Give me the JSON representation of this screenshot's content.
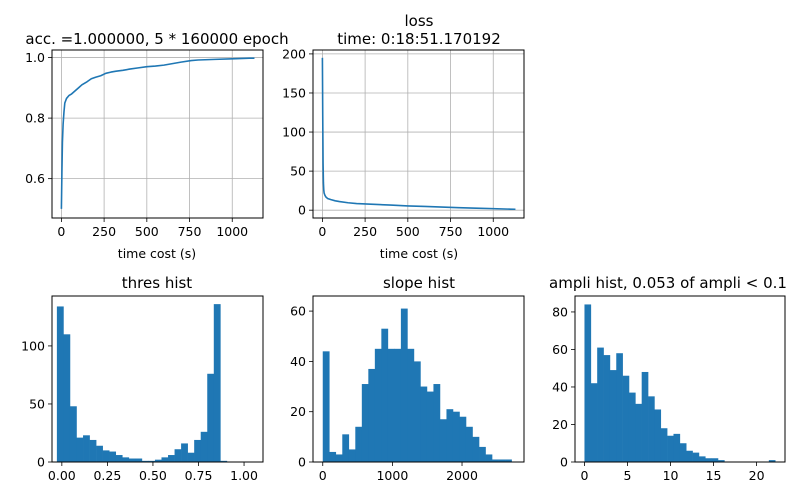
{
  "figure": {
    "accent": "#1f77b4"
  },
  "chart_data": [
    {
      "id": "acc",
      "type": "line",
      "title": "acc. =1.000000, 5 * 160000 epoch",
      "xlabel": "time cost (s)",
      "ylabel": "",
      "xlim": [
        -55,
        1180
      ],
      "ylim": [
        0.47,
        1.025
      ],
      "xticks": [
        0,
        250,
        500,
        750,
        1000
      ],
      "xtick_labels": [
        "0",
        "250",
        "500",
        "750",
        "1000"
      ],
      "yticks": [
        0.6,
        0.8,
        1.0
      ],
      "ytick_labels": [
        "0.6",
        "0.8",
        "1.0"
      ],
      "grid": true,
      "x": [
        0,
        3,
        6,
        10,
        15,
        20,
        30,
        45,
        60,
        80,
        100,
        120,
        150,
        175,
        200,
        230,
        260,
        290,
        320,
        360,
        400,
        450,
        500,
        550,
        600,
        650,
        700,
        760,
        800,
        900,
        1000,
        1100,
        1130
      ],
      "y": [
        0.5,
        0.62,
        0.72,
        0.78,
        0.82,
        0.85,
        0.865,
        0.875,
        0.88,
        0.89,
        0.9,
        0.91,
        0.92,
        0.93,
        0.935,
        0.94,
        0.948,
        0.952,
        0.955,
        0.958,
        0.962,
        0.966,
        0.97,
        0.972,
        0.975,
        0.98,
        0.985,
        0.99,
        0.992,
        0.994,
        0.996,
        0.998,
        0.998
      ]
    },
    {
      "id": "loss",
      "type": "line",
      "title": "loss",
      "subtitle": "time: 0:18:51.170192",
      "xlabel": "time cost (s)",
      "ylabel": "",
      "xlim": [
        -55,
        1180
      ],
      "ylim": [
        -10,
        205
      ],
      "xticks": [
        0,
        250,
        500,
        750,
        1000
      ],
      "xtick_labels": [
        "0",
        "250",
        "500",
        "750",
        "1000"
      ],
      "yticks": [
        0,
        50,
        100,
        150,
        200
      ],
      "ytick_labels": [
        "0",
        "50",
        "100",
        "150",
        "200"
      ],
      "grid": true,
      "x": [
        0,
        2,
        4,
        6,
        8,
        10,
        15,
        20,
        30,
        50,
        75,
        100,
        150,
        200,
        300,
        400,
        500,
        600,
        700,
        800,
        900,
        1000,
        1100,
        1130
      ],
      "y": [
        195,
        120,
        60,
        35,
        26,
        22,
        19,
        17,
        15,
        13.5,
        12,
        11,
        9.5,
        8.5,
        7.5,
        6.5,
        5.5,
        4.8,
        4,
        3.2,
        2.6,
        2,
        1.3,
        1.2
      ]
    },
    {
      "id": "thres",
      "type": "bar",
      "title": "thres hist",
      "xlabel": "",
      "ylabel": "",
      "xlim": [
        -0.054,
        1.104
      ],
      "ylim": [
        0,
        143
      ],
      "xticks": [
        0.0,
        0.25,
        0.5,
        0.75,
        1.0
      ],
      "xtick_labels": [
        "0.00",
        "0.25",
        "0.50",
        "0.75",
        "1.00"
      ],
      "yticks": [
        0,
        50,
        100
      ],
      "ytick_labels": [
        "0",
        "50",
        "100"
      ],
      "grid": false,
      "bin_start": -0.0272,
      "bin_width": 0.03588,
      "values": [
        134,
        110,
        48,
        21,
        23,
        19,
        14,
        10,
        9,
        6,
        4,
        3,
        3,
        1,
        1,
        2,
        4,
        6,
        11,
        16,
        8,
        19,
        26,
        76,
        136,
        1
      ]
    },
    {
      "id": "slope",
      "type": "bar",
      "title": "slope hist",
      "xlabel": "",
      "ylabel": "",
      "xlim": [
        -140,
        2890
      ],
      "ylim": [
        0,
        66
      ],
      "xticks": [
        0,
        1000,
        2000
      ],
      "xtick_labels": [
        "0",
        "1000",
        "2000"
      ],
      "yticks": [
        0,
        20,
        40,
        60
      ],
      "ytick_labels": [
        "0",
        "20",
        "40",
        "60"
      ],
      "grid": false,
      "bin_start": 0,
      "bin_width": 93.5,
      "values": [
        44,
        4,
        3,
        11,
        5,
        14,
        31,
        37,
        45,
        53,
        45,
        45,
        61,
        45,
        40,
        30,
        28,
        31,
        17,
        21,
        20,
        18,
        14,
        10,
        6,
        3,
        1,
        1,
        1
      ]
    },
    {
      "id": "ampli",
      "type": "bar",
      "title": "ampli hist, 0.053 of ampli < 0.1",
      "xlabel": "",
      "ylabel": "",
      "xlim": [
        -1.1,
        23.3
      ],
      "ylim": [
        0,
        88.5
      ],
      "xticks": [
        0,
        5,
        10,
        15,
        20
      ],
      "xtick_labels": [
        "0",
        "5",
        "10",
        "15",
        "20"
      ],
      "yticks": [
        0,
        20,
        40,
        60,
        80
      ],
      "ytick_labels": [
        "0",
        "20",
        "40",
        "60",
        "80"
      ],
      "grid": false,
      "bin_start": 0,
      "bin_width": 0.7387,
      "values": [
        84,
        42,
        61,
        57,
        49,
        58,
        46,
        37,
        31,
        48,
        35,
        28,
        18,
        14,
        15,
        10,
        6,
        5,
        3,
        2,
        2,
        1,
        0,
        0,
        0,
        0,
        0,
        0,
        0,
        1
      ]
    }
  ]
}
